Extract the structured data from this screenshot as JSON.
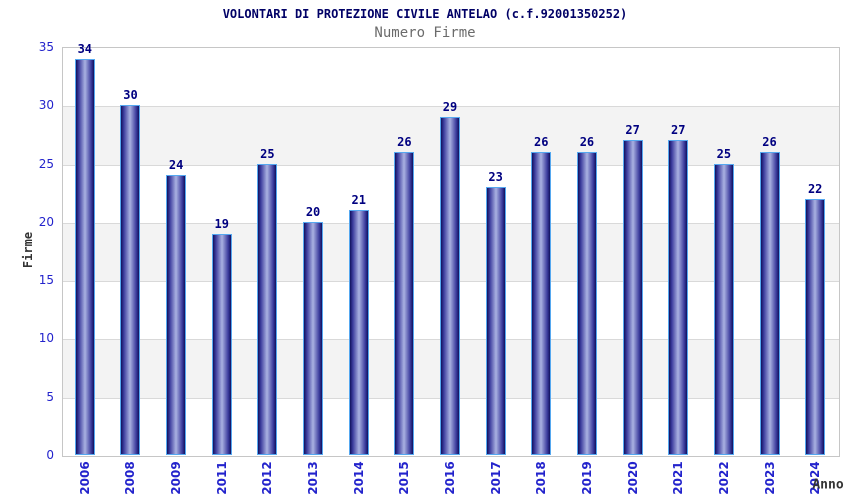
{
  "chart_data": {
    "type": "bar",
    "title": "VOLONTARI DI PROTEZIONE CIVILE ANTELAO (c.f.92001350252)",
    "subtitle": "Numero Firme",
    "xlabel": "Anno",
    "ylabel": "Firme",
    "categories": [
      "2006",
      "2008",
      "2009",
      "2011",
      "2012",
      "2013",
      "2014",
      "2015",
      "2016",
      "2017",
      "2018",
      "2019",
      "2020",
      "2021",
      "2022",
      "2023",
      "2024"
    ],
    "values": [
      34,
      30,
      24,
      19,
      25,
      20,
      21,
      26,
      29,
      23,
      26,
      26,
      27,
      27,
      25,
      26,
      22
    ],
    "ylim": [
      0,
      35
    ],
    "ytick_step": 5,
    "grid": "horizontal-bands",
    "legend": "none",
    "colors": {
      "title": "#000066",
      "subtitle": "#6b6b6b",
      "tick_label": "#2323cc",
      "value_label": "#000080",
      "axis_title": "#333333",
      "bar_dark": "#10105e",
      "bar_mid": "#3d3d9e",
      "bar_light": "#aab2e2",
      "bar_border": "#55a8f0",
      "band_gray": "#f3f3f3",
      "gridline": "#d9d9d9",
      "plot_border": "#c6c6c6"
    }
  }
}
